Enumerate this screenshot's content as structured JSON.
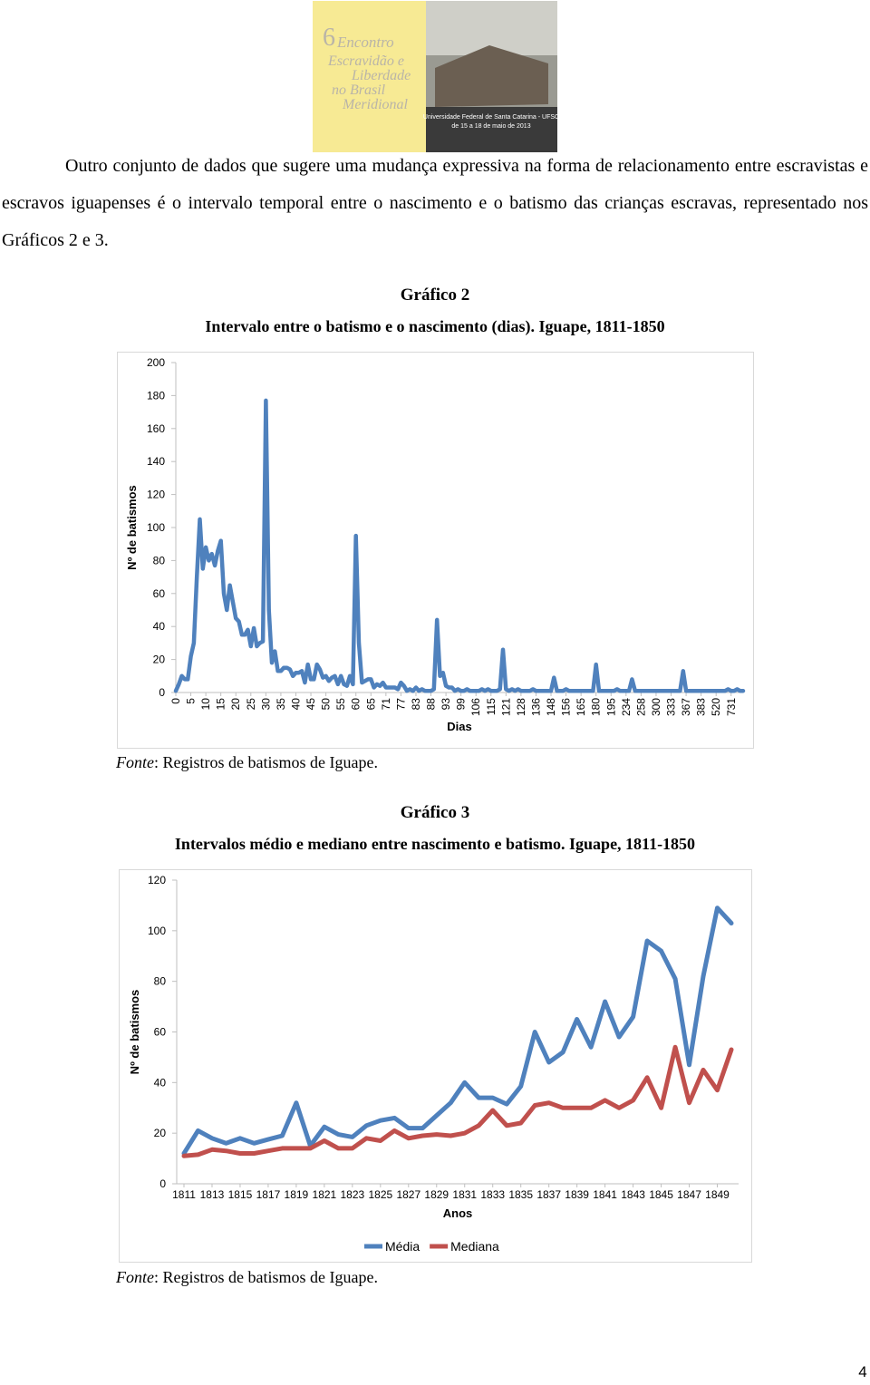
{
  "header": {
    "logo_lines": [
      "6",
      "Encontro",
      "Escravidão e",
      "Liberdade",
      "no Brasil",
      "Meridional"
    ],
    "logo_footer": [
      "Universidade Federal de Santa Catarina - UFSC",
      "de 15 a 18 de maio de 2013"
    ]
  },
  "paragraph": "Outro conjunto de dados que sugere uma mudança expressiva na forma de relacionamento entre escravistas e escravos iguapenses é o intervalo temporal entre o nascimento e o batismo das crianças escravas, representado nos Gráficos 2 e 3.",
  "chart_data": [
    {
      "type": "line",
      "title": "Gráfico 2",
      "subtitle": "Intervalo entre o batismo e o nascimento (dias). Iguape, 1811-1850",
      "y_label": "Nº de batismos",
      "x_label": "Dias",
      "color": "#4f81bd",
      "categories": [
        "0",
        null,
        null,
        null,
        null,
        "5",
        null,
        null,
        null,
        null,
        "10",
        null,
        null,
        null,
        null,
        "15",
        null,
        null,
        null,
        null,
        "20",
        null,
        null,
        null,
        null,
        "25",
        null,
        null,
        null,
        null,
        "30",
        null,
        null,
        null,
        null,
        "35",
        null,
        null,
        null,
        null,
        "40",
        null,
        null,
        null,
        null,
        "45",
        null,
        null,
        null,
        null,
        "50",
        null,
        null,
        null,
        null,
        "55",
        null,
        null,
        null,
        null,
        "60",
        null,
        null,
        null,
        null,
        "65",
        null,
        null,
        null,
        null,
        "71",
        null,
        null,
        null,
        null,
        "77",
        null,
        null,
        null,
        null,
        "83",
        null,
        null,
        null,
        null,
        "88",
        null,
        null,
        null,
        null,
        "93",
        null,
        null,
        null,
        null,
        "99",
        null,
        null,
        null,
        null,
        "106",
        null,
        null,
        null,
        null,
        "115",
        null,
        null,
        null,
        null,
        "121",
        null,
        null,
        null,
        null,
        "128",
        null,
        null,
        null,
        null,
        "136",
        null,
        null,
        null,
        null,
        "148",
        null,
        null,
        null,
        null,
        "156",
        null,
        null,
        null,
        null,
        "165",
        null,
        null,
        null,
        null,
        "180",
        null,
        null,
        null,
        null,
        "195",
        null,
        null,
        null,
        null,
        "234",
        null,
        null,
        null,
        null,
        "258",
        null,
        null,
        null,
        null,
        "300",
        null,
        null,
        null,
        null,
        "333",
        null,
        null,
        null,
        null,
        "367",
        null,
        null,
        null,
        null,
        "383",
        null,
        null,
        null,
        null,
        "520",
        null,
        null,
        null,
        null,
        "731",
        null,
        null,
        null,
        null
      ],
      "values": [
        1,
        5,
        10,
        8,
        8,
        22,
        30,
        70,
        105,
        75,
        88,
        80,
        84,
        77,
        86,
        92,
        60,
        50,
        65,
        55,
        45,
        43,
        35,
        35,
        38,
        28,
        39,
        28,
        30,
        31,
        177,
        50,
        18,
        25,
        13,
        13,
        15,
        15,
        14,
        10,
        12,
        12,
        13,
        6,
        17,
        8,
        8,
        17,
        14,
        9,
        10,
        7,
        9,
        10,
        5,
        10,
        5,
        4,
        10,
        5,
        95,
        30,
        6,
        7,
        8,
        8,
        3,
        5,
        4,
        6,
        3,
        3,
        3,
        3,
        2,
        6,
        4,
        1,
        2,
        1,
        3,
        1,
        2,
        1,
        1,
        1,
        2,
        44,
        10,
        12,
        4,
        3,
        3,
        1,
        2,
        1,
        1,
        2,
        1,
        1,
        1,
        1,
        2,
        1,
        2,
        1,
        1,
        1,
        2,
        26,
        2,
        1,
        2,
        1,
        2,
        1,
        1,
        1,
        1,
        2,
        1,
        1,
        1,
        1,
        1,
        1,
        9,
        1,
        1,
        1,
        2,
        1,
        1,
        1,
        1,
        1,
        1,
        1,
        1,
        1,
        17,
        1,
        1,
        1,
        1,
        1,
        1,
        2,
        1,
        1,
        1,
        1,
        8,
        1,
        1,
        1,
        1,
        1,
        1,
        1,
        1,
        1,
        1,
        1,
        1,
        1,
        1,
        1,
        1,
        13,
        1,
        1,
        1,
        1,
        1,
        1,
        1,
        1,
        1,
        1,
        1,
        1,
        1,
        1,
        2,
        1,
        1,
        2,
        1,
        1
      ],
      "ylim": [
        0,
        200
      ],
      "yticks": [
        0,
        20,
        40,
        60,
        80,
        100,
        120,
        140,
        160,
        180,
        200
      ],
      "grid": false,
      "x_label_rotation": -90
    },
    {
      "type": "line",
      "title": "Gráfico 3",
      "subtitle": "Intervalos médio e mediano entre nascimento e batismo. Iguape, 1811-1850",
      "y_label": "Nº de batismos",
      "x_label": "Anos",
      "categories": [
        "1811",
        null,
        "1813",
        null,
        "1815",
        null,
        "1817",
        null,
        "1819",
        null,
        "1821",
        null,
        "1823",
        null,
        "1825",
        null,
        "1827",
        null,
        "1829",
        null,
        "1831",
        null,
        "1833",
        null,
        "1835",
        null,
        "1837",
        null,
        "1839",
        null,
        "1841",
        null,
        "1843",
        null,
        "1845",
        null,
        "1847",
        null,
        "1849",
        null
      ],
      "series": [
        {
          "name": "Média",
          "color": "#4f81bd",
          "values": [
            12,
            21,
            18,
            16,
            18,
            16,
            17.5,
            19,
            32,
            15,
            22.5,
            19.5,
            18.5,
            23,
            25,
            26,
            22,
            22,
            27,
            32,
            40,
            34,
            34,
            31.5,
            38.5,
            60,
            48,
            52,
            65,
            54,
            72,
            58,
            66,
            96,
            92,
            81,
            47,
            82,
            109,
            103
          ]
        },
        {
          "name": "Mediana",
          "color": "#c0504d",
          "values": [
            11,
            11.5,
            13.5,
            13,
            12,
            12,
            13,
            14,
            14,
            14,
            17,
            14,
            14,
            18,
            17,
            21,
            18,
            19,
            19.5,
            19,
            20,
            23,
            29,
            23,
            24,
            31,
            32,
            30,
            30,
            30,
            33,
            30,
            33,
            42,
            30,
            54,
            32,
            45,
            37,
            53
          ]
        }
      ],
      "ylim": [
        0,
        120
      ],
      "yticks": [
        0,
        20,
        40,
        60,
        80,
        100,
        120
      ],
      "grid": false,
      "legend": "bottom",
      "x_label_rotation": 0
    }
  ],
  "sources": [
    {
      "label": "Fonte",
      "text": ": Registros de batismos de Iguape."
    },
    {
      "label": "Fonte",
      "text": ": Registros de batismos de Iguape."
    }
  ],
  "page_number": "4"
}
